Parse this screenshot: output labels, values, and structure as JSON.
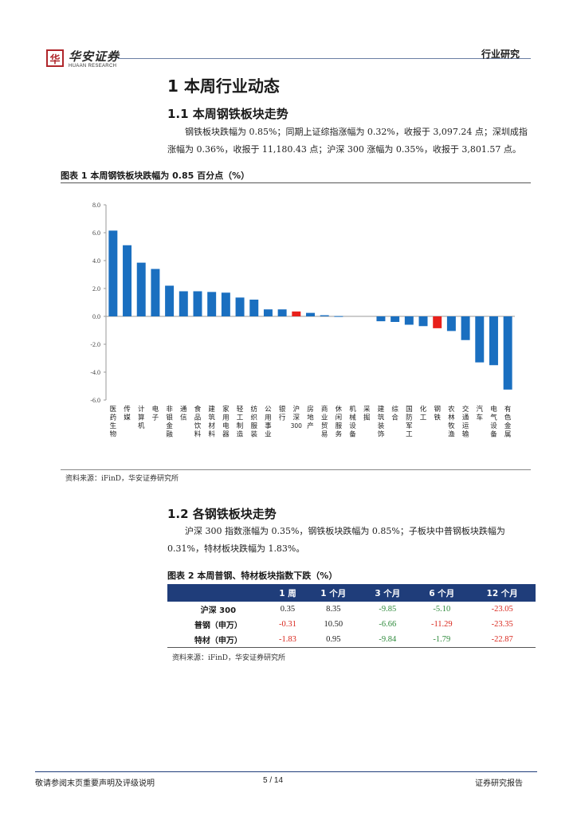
{
  "header": {
    "logo_mark": "华",
    "logo_cn": "华安证券",
    "logo_en": "HUAAN RESEARCH",
    "section_label": "行业研究"
  },
  "section1": {
    "title": "1  本周行业动态",
    "sub1_title": "1.1  本周钢铁板块走势",
    "sub1_text": "钢铁板块跌幅为 0.85%；同期上证综指涨幅为 0.32%，收报于 3,097.24 点；深圳成指涨幅为 0.36%，收报于 11,180.43 点；沪深 300 涨幅为 0.35%，收报于 3,801.57 点。",
    "fig1_title": "图表 1  本周钢铁板块跌幅为 0.85 百分点（%）",
    "fig1_source": "资料来源：iFinD，华安证券研究所",
    "sub2_title": "1.2  各钢铁板块走势",
    "sub2_text": "沪深 300 指数涨幅为 0.35%，钢铁板块跌幅为 0.85%；子板块中普钢板块跌幅为 0.31%，特材板块跌幅为 1.83%。"
  },
  "chart_data": {
    "type": "bar",
    "categories": [
      "医药生物",
      "传媒",
      "计算机",
      "电子",
      "非银金融",
      "通信",
      "食品饮料",
      "建筑材料",
      "家用电器",
      "轻工制造",
      "纺织服装",
      "公用事业",
      "银行",
      "沪深300",
      "房地产",
      "商业贸易",
      "休闲服务",
      "机械设备",
      "采掘",
      "建筑装饰",
      "综合",
      "国防军工",
      "化工",
      "钢铁",
      "农林牧渔",
      "交通运输",
      "汽车",
      "电气设备",
      "有色金属"
    ],
    "values": [
      6.15,
      5.1,
      3.85,
      3.4,
      2.2,
      1.8,
      1.8,
      1.75,
      1.7,
      1.35,
      1.2,
      0.5,
      0.5,
      0.35,
      0.25,
      0.08,
      0.02,
      0.0,
      0.0,
      -0.35,
      -0.4,
      -0.6,
      -0.7,
      -0.85,
      -1.05,
      -1.7,
      -3.3,
      -3.5,
      -5.25
    ],
    "highlight": {
      "沪深300": "#e8201b",
      "钢铁": "#e8201b"
    },
    "bar_color": "#1a6fc0",
    "ylim": [
      -6.0,
      8.0
    ],
    "yticks": [
      "8.0",
      "6.0",
      "4.0",
      "2.0",
      "0.0",
      "-2.0",
      "-4.0",
      "-6.0"
    ],
    "grid": false
  },
  "table": {
    "title": "图表 2  本周普钢、特材板块指数下跌（%）",
    "headers": [
      "",
      "1 周",
      "1 个月",
      "3 个月",
      "6 个月",
      "12 个月"
    ],
    "rows": [
      {
        "label": "沪深 300",
        "v": [
          "0.35",
          "8.35",
          "-9.85",
          "-5.10",
          "-23.05"
        ]
      },
      {
        "label": "普钢（申万）",
        "v": [
          "-0.31",
          "10.50",
          "-6.66",
          "-11.29",
          "-23.35"
        ]
      },
      {
        "label": "特材（申万）",
        "v": [
          "-1.83",
          "0.95",
          "-9.84",
          "-1.79",
          "-22.87"
        ]
      }
    ],
    "source": "资料来源：iFinD，华安证券研究所"
  },
  "footer": {
    "left": "敬请参阅末页重要声明及评级说明",
    "page": "5 / 14",
    "right": "证券研究报告"
  }
}
